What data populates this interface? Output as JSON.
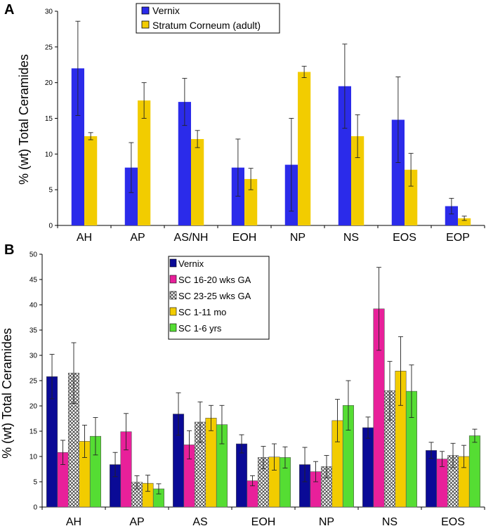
{
  "chart_data": [
    {
      "panel": "A",
      "type": "bar",
      "ylabel": "% (wt) Total Ceramides",
      "ylim": [
        0,
        30
      ],
      "yticks": [
        0,
        5,
        10,
        15,
        20,
        25,
        30
      ],
      "categories": [
        "AH",
        "AP",
        "AS/NH",
        "EOH",
        "NP",
        "NS",
        "EOS",
        "EOP"
      ],
      "legend_position": "top-center",
      "series": [
        {
          "name": "Vernix",
          "color": "#2b2bea",
          "values": [
            22.0,
            8.1,
            17.3,
            8.1,
            8.5,
            19.5,
            14.8,
            2.7
          ],
          "errors": [
            6.6,
            3.5,
            3.3,
            4.0,
            6.5,
            5.9,
            6.0,
            1.1
          ]
        },
        {
          "name": "Stratum Corneum (adult)",
          "color": "#f2cc00",
          "values": [
            12.5,
            17.5,
            12.1,
            6.5,
            21.5,
            12.5,
            7.8,
            1.0
          ],
          "errors": [
            0.5,
            2.5,
            1.2,
            1.5,
            0.8,
            3.0,
            2.3,
            0.3
          ]
        }
      ]
    },
    {
      "panel": "B",
      "type": "bar",
      "ylabel": "% (wt) Total Ceramides",
      "ylim": [
        0,
        50
      ],
      "yticks": [
        0,
        5,
        10,
        15,
        20,
        25,
        30,
        35,
        40,
        45,
        50
      ],
      "categories": [
        "AH",
        "AP",
        "AS",
        "EOH",
        "NP",
        "NS",
        "EOS"
      ],
      "legend_position": "top-center",
      "series": [
        {
          "name": "Vernix",
          "color": "#0a0a96",
          "pattern": "solid",
          "values": [
            25.8,
            8.4,
            18.4,
            12.5,
            8.4,
            15.7,
            11.2
          ],
          "errors": [
            4.4,
            2.4,
            4.2,
            1.8,
            3.4,
            2.1,
            1.6
          ]
        },
        {
          "name": "SC 16-20 wks GA",
          "color": "#e8209a",
          "pattern": "solid",
          "values": [
            10.8,
            14.9,
            12.3,
            5.2,
            7.0,
            39.2,
            9.5
          ],
          "errors": [
            2.4,
            3.6,
            2.8,
            1.0,
            2.0,
            8.2,
            1.5
          ]
        },
        {
          "name": "SC 23-25 wks GA",
          "color": "#ffffff",
          "pattern": "crosshatch",
          "values": [
            26.5,
            4.9,
            16.8,
            9.8,
            8.0,
            23.0,
            10.2
          ],
          "errors": [
            6.0,
            1.3,
            4.0,
            2.2,
            2.2,
            5.8,
            2.4
          ]
        },
        {
          "name": "SC 1-11 mo",
          "color": "#f2cc00",
          "pattern": "solid",
          "values": [
            13.0,
            4.7,
            17.6,
            9.9,
            17.1,
            26.9,
            10.0
          ],
          "errors": [
            3.2,
            1.6,
            2.5,
            2.6,
            4.2,
            6.8,
            2.2
          ]
        },
        {
          "name": "SC 1-6 yrs",
          "color": "#55dd33",
          "pattern": "solid",
          "values": [
            14.0,
            3.6,
            16.3,
            9.8,
            20.1,
            22.9,
            14.1
          ],
          "errors": [
            3.7,
            1.0,
            3.8,
            2.1,
            4.9,
            5.2,
            1.3
          ]
        }
      ]
    }
  ]
}
